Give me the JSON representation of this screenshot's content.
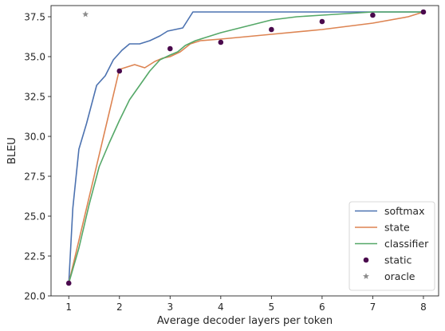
{
  "chart_data": {
    "type": "line",
    "title": "",
    "xlabel": "Average decoder layers per token",
    "ylabel": "BLEU",
    "xlim": [
      0.65,
      8.3
    ],
    "ylim": [
      20.0,
      38.2
    ],
    "xticks": [
      1,
      2,
      3,
      4,
      5,
      6,
      7,
      8
    ],
    "yticks": [
      20.0,
      22.5,
      25.0,
      27.5,
      30.0,
      32.5,
      35.0,
      37.5
    ],
    "grid": false,
    "legend_position": "lower-right",
    "series": [
      {
        "name": "softmax",
        "type": "line",
        "color": "#4c72b0",
        "x": [
          1.0,
          1.08,
          1.2,
          1.35,
          1.55,
          1.72,
          1.88,
          2.05,
          2.2,
          2.4,
          2.6,
          2.8,
          2.95,
          3.1,
          3.25,
          3.35,
          3.45,
          4.0,
          5.0,
          6.0,
          7.0,
          8.0
        ],
        "y": [
          20.8,
          25.5,
          29.2,
          30.8,
          33.2,
          33.8,
          34.8,
          35.4,
          35.8,
          35.8,
          36.0,
          36.3,
          36.6,
          36.7,
          36.8,
          37.3,
          37.8,
          37.8,
          37.8,
          37.8,
          37.8,
          37.8
        ]
      },
      {
        "name": "state",
        "type": "line",
        "color": "#dd8452",
        "x": [
          1.0,
          1.5,
          2.0,
          2.3,
          2.5,
          2.7,
          2.85,
          3.0,
          3.2,
          3.4,
          3.6,
          4.0,
          5.0,
          6.0,
          7.0,
          7.7,
          8.0
        ],
        "y": [
          20.8,
          27.5,
          34.2,
          34.5,
          34.3,
          34.7,
          34.9,
          35.0,
          35.3,
          35.8,
          36.0,
          36.1,
          36.4,
          36.7,
          37.1,
          37.5,
          37.8
        ]
      },
      {
        "name": "classifier",
        "type": "line",
        "color": "#55a868",
        "x": [
          1.0,
          1.2,
          1.4,
          1.6,
          1.8,
          2.0,
          2.2,
          2.4,
          2.6,
          2.8,
          3.0,
          3.15,
          3.3,
          3.5,
          3.8,
          4.0,
          4.5,
          5.0,
          5.5,
          6.0,
          6.5,
          7.0,
          7.5,
          8.0
        ],
        "y": [
          20.8,
          23.0,
          25.7,
          28.1,
          29.6,
          31.0,
          32.3,
          33.2,
          34.1,
          34.8,
          35.1,
          35.3,
          35.7,
          36.0,
          36.3,
          36.5,
          36.9,
          37.3,
          37.5,
          37.6,
          37.7,
          37.8,
          37.8,
          37.8
        ]
      },
      {
        "name": "static",
        "type": "scatter",
        "marker": "circle",
        "color": "#4a0a4d",
        "x": [
          1,
          2,
          3,
          4,
          5,
          6,
          7,
          8
        ],
        "y": [
          20.8,
          34.1,
          35.5,
          35.9,
          36.7,
          37.2,
          37.6,
          37.8
        ]
      },
      {
        "name": "oracle",
        "type": "scatter",
        "marker": "star",
        "color": "#8c8c8c",
        "x": [
          1.33
        ],
        "y": [
          37.65
        ]
      }
    ]
  }
}
